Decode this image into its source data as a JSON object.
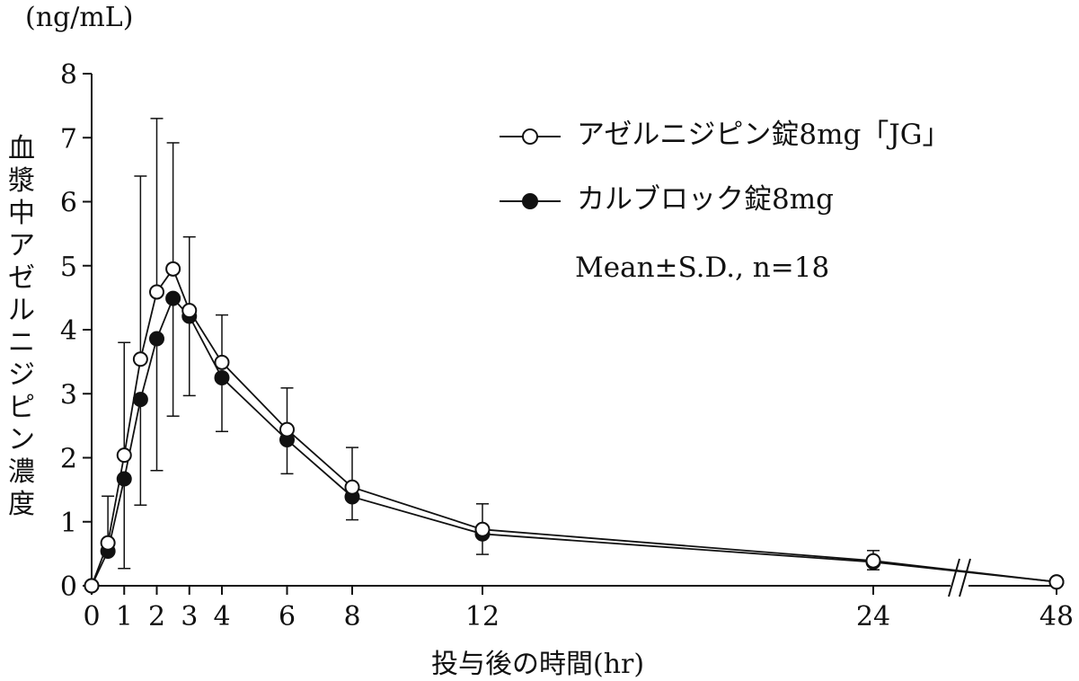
{
  "chart_data": {
    "type": "line",
    "unit_label": "(ng/mL)",
    "ylabel": "血漿中アゼルニジピン濃度",
    "xlabel": "投与後の時間(hr)",
    "ylim": [
      0,
      8
    ],
    "yticks": [
      "0",
      "1",
      "2",
      "3",
      "4",
      "5",
      "6",
      "7",
      "8"
    ],
    "xticks": [
      {
        "value": 0,
        "label": "0"
      },
      {
        "value": 1,
        "label": "1"
      },
      {
        "value": 2,
        "label": "2"
      },
      {
        "value": 3,
        "label": "3"
      },
      {
        "value": 4,
        "label": "4"
      },
      {
        "value": 6,
        "label": "6"
      },
      {
        "value": 8,
        "label": "8"
      },
      {
        "value": 12,
        "label": "12"
      },
      {
        "value": 24,
        "label": "24"
      },
      {
        "value": 48,
        "label": "48"
      }
    ],
    "x_axis_break": "between 24 and 48",
    "legend_placement": "top-right",
    "note": "Mean±S.D., n=18",
    "series": [
      {
        "name": "アゼルニジピン錠8mg「JG」",
        "marker": "open-circle",
        "x": [
          0,
          0.5,
          1,
          1.5,
          2,
          2.5,
          3,
          4,
          6,
          8,
          12,
          24,
          48
        ],
        "y": [
          0,
          0.67,
          2.04,
          3.54,
          4.59,
          4.95,
          4.3,
          3.49,
          2.44,
          1.54,
          0.88,
          0.39,
          0.06
        ],
        "sd_upper": [
          null,
          1.4,
          3.8,
          6.4,
          7.3,
          6.92,
          5.45,
          4.23,
          3.09,
          2.16,
          1.28,
          0.55,
          null
        ]
      },
      {
        "name": "カルブロック錠8mg",
        "marker": "filled-circle",
        "x": [
          0,
          0.5,
          1,
          1.5,
          2,
          2.5,
          3,
          4,
          6,
          8,
          12,
          24,
          48
        ],
        "y": [
          0,
          0.54,
          1.67,
          2.91,
          3.86,
          4.49,
          4.21,
          3.25,
          2.28,
          1.39,
          0.81,
          0.37,
          0.06
        ],
        "sd_lower": [
          null,
          null,
          0.27,
          1.26,
          1.8,
          2.65,
          2.97,
          2.41,
          1.75,
          1.03,
          0.49,
          0.25,
          null
        ]
      }
    ]
  }
}
